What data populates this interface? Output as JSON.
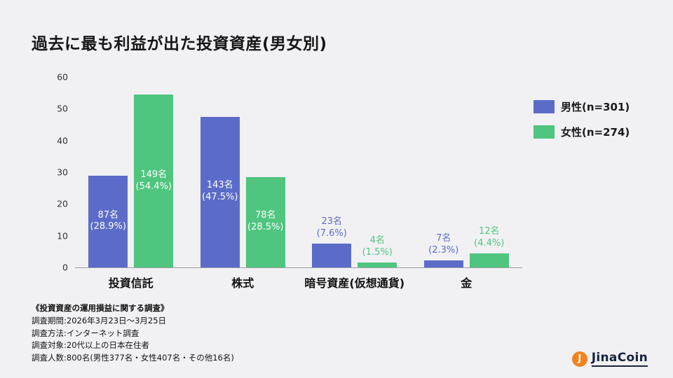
{
  "title": "過去に最も利益が出た投資資産(男女別)",
  "chart_data": {
    "type": "bar",
    "title": "過去に最も利益が出た投資資産(男女別)",
    "categories": [
      "投資信託",
      "株式",
      "暗号資産(仮想通貨)",
      "金"
    ],
    "series": [
      {
        "name": "男性(n=301)",
        "key": "male",
        "color": "#5b6cc8",
        "counts": [
          87,
          143,
          23,
          7
        ],
        "percents": [
          28.9,
          47.5,
          7.6,
          2.3
        ]
      },
      {
        "name": "女性(n=274)",
        "key": "female",
        "color": "#4fc57f",
        "counts": [
          149,
          78,
          4,
          12
        ],
        "percents": [
          54.4,
          28.5,
          1.5,
          4.4
        ]
      }
    ],
    "ylim": [
      0,
      60
    ],
    "yticks": [
      0,
      10,
      20,
      30,
      40,
      50,
      60
    ],
    "inside_label_min": 15,
    "grid": false,
    "legend_position": "right",
    "count_suffix": "名"
  },
  "footnotes": [
    "《投資資産の運用損益に関する調査》",
    "調査期間:2026年3月23日〜3月25日",
    "調査方法:インターネット調査",
    "調査対象:20代以上の日本在住者",
    "調査人数:800名(男性377名・女性407名・その他16名)"
  ],
  "logo": {
    "mark": "J",
    "text": "JinaCoin"
  }
}
